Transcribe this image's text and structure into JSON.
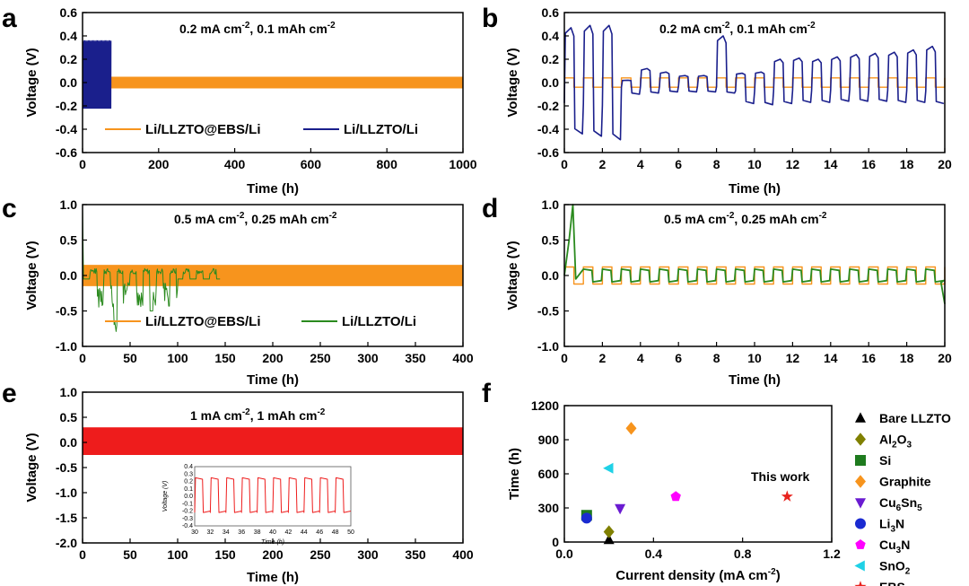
{
  "panels": [
    {
      "label": "a",
      "condition": "0.2 mA cm^-2, 0.1 mAh cm^-2",
      "cond_main": "0.2 mA cm",
      "cond_e1": "-2",
      "cond_mid": ", 0.1 mAh cm",
      "cond_e2": "-2",
      "xlabel": "Time (h)",
      "ylabel": "Voltage (V)",
      "xlim": [
        0,
        1000
      ],
      "ylim": [
        -0.6,
        0.6
      ],
      "xticks": [
        "0",
        "200",
        "400",
        "600",
        "800",
        "1000"
      ],
      "yticks": [
        "0.6",
        "0.4",
        "0.2",
        "0.0",
        "-0.2",
        "-0.4",
        "-0.6"
      ],
      "legend": [
        "Li/LLZTO@EBS/Li",
        "Li/LLZTO/Li"
      ]
    },
    {
      "label": "b",
      "cond_main": "0.2 mA cm",
      "cond_e1": "-2",
      "cond_mid": ", 0.1 mAh cm",
      "cond_e2": "-2",
      "xlabel": "Time (h)",
      "ylabel": "Voltage (V)",
      "xlim": [
        0,
        20
      ],
      "ylim": [
        -0.6,
        0.6
      ],
      "xticks": [
        "0",
        "2",
        "4",
        "6",
        "8",
        "10",
        "12",
        "14",
        "16",
        "18",
        "20"
      ],
      "yticks": [
        "0.6",
        "0.4",
        "0.2",
        "0.0",
        "-0.2",
        "-0.4",
        "-0.6"
      ]
    },
    {
      "label": "c",
      "cond_main": "0.5 mA cm",
      "cond_e1": "-2",
      "cond_mid": ", 0.25 mAh cm",
      "cond_e2": "-2",
      "xlabel": "Time (h)",
      "ylabel": "Voltage (V)",
      "xlim": [
        0,
        400
      ],
      "ylim": [
        -1.0,
        1.0
      ],
      "xticks": [
        "0",
        "50",
        "100",
        "150",
        "200",
        "250",
        "300",
        "350",
        "400"
      ],
      "yticks": [
        "1.0",
        "0.5",
        "0.0",
        "-0.5",
        "-1.0"
      ],
      "legend": [
        "Li/LLZTO@EBS/Li",
        "Li/LLZTO/Li"
      ]
    },
    {
      "label": "d",
      "cond_main": "0.5 mA cm",
      "cond_e1": "-2",
      "cond_mid": ", 0.25 mAh cm",
      "cond_e2": "-2",
      "xlabel": "Time (h)",
      "ylabel": "Voltage (V)",
      "xlim": [
        0,
        20
      ],
      "ylim": [
        -1.0,
        1.0
      ],
      "xticks": [
        "0",
        "2",
        "4",
        "6",
        "8",
        "10",
        "12",
        "14",
        "16",
        "18",
        "20"
      ],
      "yticks": [
        "1.0",
        "0.5",
        "0.0",
        "-0.5",
        "-1.0"
      ]
    },
    {
      "label": "e",
      "cond_main": "1 mA cm",
      "cond_e1": "-2",
      "cond_mid": ", 1 mAh cm",
      "cond_e2": "-2",
      "xlabel": "Time (h)",
      "ylabel": "Voltage (V)",
      "xlim": [
        0,
        400
      ],
      "ylim": [
        -2.0,
        1.0
      ],
      "xticks": [
        "0",
        "50",
        "100",
        "150",
        "200",
        "250",
        "300",
        "350",
        "400"
      ],
      "yticks": [
        "1.0",
        "0.5",
        "0.0",
        "-0.5",
        "-1.0",
        "-1.5",
        "-2.0"
      ],
      "inset": {
        "xlabel": "Time (h)",
        "ylabel": "Voltage (V)",
        "xticks": [
          "30",
          "32",
          "34",
          "36",
          "38",
          "40",
          "42",
          "44",
          "46",
          "48",
          "50"
        ],
        "yticks": [
          "0.4",
          "0.3",
          "0.2",
          "0.1",
          "0.0",
          "-0.1",
          "-0.2",
          "-0.3",
          "-0.4"
        ]
      }
    },
    {
      "label": "f",
      "xlabel_main": "Current density (mA cm",
      "xlabel_sup": "-2",
      "xlabel_end": ")",
      "ylabel": "Time (h)",
      "xticks": [
        "0.0",
        "0.4",
        "0.8",
        "1.2"
      ],
      "yticks": [
        "1200",
        "900",
        "600",
        "300",
        "0"
      ],
      "annotation": "This work"
    }
  ],
  "chart_data": [
    {
      "panel": "a",
      "type": "line",
      "title": "0.2 mA cm-2, 0.1 mAh cm-2",
      "xlabel": "Time (h)",
      "ylabel": "Voltage (V)",
      "xlim": [
        0,
        1000
      ],
      "ylim": [
        -0.6,
        0.6
      ],
      "series": [
        {
          "name": "Li/LLZTO@EBS/Li",
          "color": "#f7941d",
          "t_end": 1000,
          "amplitude": 0.05
        },
        {
          "name": "Li/LLZTO/Li",
          "color": "#1a1f8c",
          "t_end": 75,
          "upper": 0.36,
          "lower": -0.22
        }
      ]
    },
    {
      "panel": "b",
      "type": "line",
      "title": "0.2 mA cm-2, 0.1 mAh cm-2",
      "xlim": [
        0,
        20
      ],
      "ylim": [
        -0.6,
        0.6
      ],
      "series": [
        {
          "name": "Li/LLZTO@EBS/Li",
          "color": "#f7941d",
          "amplitude": 0.04,
          "period": 1.0
        },
        {
          "name": "Li/LLZTO/Li",
          "color": "#1a1f8c",
          "period": 1.0,
          "peak_highs": [
            0.47,
            0.49,
            0.49,
            0.02,
            0.12,
            0.09,
            0.06,
            0.06,
            0.4,
            0.08,
            0.09,
            0.2,
            0.21,
            0.2,
            0.22,
            0.24,
            0.25,
            0.26,
            0.28,
            0.31
          ],
          "peak_lows": [
            -0.44,
            -0.46,
            -0.49,
            -0.1,
            -0.09,
            -0.08,
            -0.08,
            -0.08,
            -0.09,
            -0.18,
            -0.19,
            -0.18,
            -0.17,
            -0.17,
            -0.16,
            -0.16,
            -0.16,
            -0.17,
            -0.17,
            -0.18
          ]
        }
      ]
    },
    {
      "panel": "c",
      "type": "line",
      "title": "0.5 mA cm-2, 0.25 mAh cm-2",
      "xlim": [
        0,
        400
      ],
      "ylim": [
        -1.0,
        1.0
      ],
      "series": [
        {
          "name": "Li/LLZTO@EBS/Li",
          "color": "#f7941d",
          "t_end": 400,
          "amplitude": 0.15
        },
        {
          "name": "Li/LLZTO/Li",
          "color": "#2a8a1e",
          "t_end": 145,
          "min": -0.8,
          "max": 0.1
        }
      ]
    },
    {
      "panel": "d",
      "type": "line",
      "title": "0.5 mA cm-2, 0.25 mAh cm-2",
      "xlim": [
        0,
        20
      ],
      "ylim": [
        -1.0,
        1.0
      ],
      "series": [
        {
          "name": "Li/LLZTO@EBS/Li",
          "color": "#f7941d",
          "amplitude": 0.12,
          "period": 1.0
        },
        {
          "name": "Li/LLZTO/Li",
          "color": "#2a8a1e",
          "initial_peak": 1.0,
          "amplitude": 0.09,
          "period": 1.0,
          "end_value": -0.4
        }
      ]
    },
    {
      "panel": "e",
      "type": "line",
      "title": "1 mA cm-2, 1 mAh cm-2",
      "xlim": [
        0,
        400
      ],
      "ylim": [
        -2.0,
        1.0
      ],
      "series": [
        {
          "name": "Li/LLZTO@EBS/Li",
          "color": "#ee1c1c",
          "t_end": 400,
          "upper": 0.3,
          "lower": -0.25
        }
      ],
      "inset": {
        "xlim": [
          30,
          50
        ],
        "ylim": [
          -0.4,
          0.4
        ],
        "period": 2,
        "upper": 0.25,
        "lower": -0.22
      }
    },
    {
      "panel": "f",
      "type": "scatter",
      "xlabel": "Current density (mA cm-2)",
      "ylabel": "Time (h)",
      "xlim": [
        0,
        1.2
      ],
      "ylim": [
        0,
        1200
      ],
      "points": [
        {
          "name": "Bare LLZTO",
          "x": 0.2,
          "y": 20,
          "color": "#000000",
          "marker": "triangle-up"
        },
        {
          "name": "Al2O3",
          "x": 0.2,
          "y": 90,
          "color": "#808000",
          "marker": "diamond"
        },
        {
          "name": "Si",
          "x": 0.1,
          "y": 235,
          "color": "#1e7b1e",
          "marker": "square"
        },
        {
          "name": "Graphite",
          "x": 0.3,
          "y": 1000,
          "color": "#f7941d",
          "marker": "diamond"
        },
        {
          "name": "Cu6Sn5",
          "x": 0.25,
          "y": 295,
          "color": "#6a1bd1",
          "marker": "triangle-down"
        },
        {
          "name": "Li3N",
          "x": 0.1,
          "y": 210,
          "color": "#1a2ad1",
          "marker": "circle"
        },
        {
          "name": "Cu3N",
          "x": 0.5,
          "y": 400,
          "color": "#ff00ff",
          "marker": "pentagon"
        },
        {
          "name": "SnO2",
          "x": 0.2,
          "y": 650,
          "color": "#1fd1e6",
          "marker": "triangle-left"
        },
        {
          "name": "EBS",
          "x": 1.0,
          "y": 400,
          "color": "#e8231e",
          "marker": "star"
        }
      ],
      "annotation": "This work"
    }
  ],
  "legend_f": [
    {
      "main": "Bare LLZTO",
      "sub": "",
      "rest": "",
      "sub2": "",
      "color": "#000000",
      "marker": "triangle-up"
    },
    {
      "main": "Al",
      "sub": "2",
      "rest": "O",
      "sub2": "3",
      "color": "#808000",
      "marker": "diamond"
    },
    {
      "main": "Si",
      "sub": "",
      "rest": "",
      "sub2": "",
      "color": "#1e7b1e",
      "marker": "square"
    },
    {
      "main": "Graphite",
      "sub": "",
      "rest": "",
      "sub2": "",
      "color": "#f7941d",
      "marker": "diamond"
    },
    {
      "main": "Cu",
      "sub": "6",
      "rest": "Sn",
      "sub2": "5",
      "color": "#6a1bd1",
      "marker": "triangle-down"
    },
    {
      "main": "Li",
      "sub": "3",
      "rest": "N",
      "sub2": "",
      "color": "#1a2ad1",
      "marker": "circle"
    },
    {
      "main": "Cu",
      "sub": "3",
      "rest": "N",
      "sub2": "",
      "color": "#ff00ff",
      "marker": "pentagon"
    },
    {
      "main": "SnO",
      "sub": "2",
      "rest": "",
      "sub2": "",
      "color": "#1fd1e6",
      "marker": "triangle-left"
    },
    {
      "main": "EBS",
      "sub": "",
      "rest": "",
      "sub2": "",
      "color": "#e8231e",
      "marker": "star"
    }
  ]
}
